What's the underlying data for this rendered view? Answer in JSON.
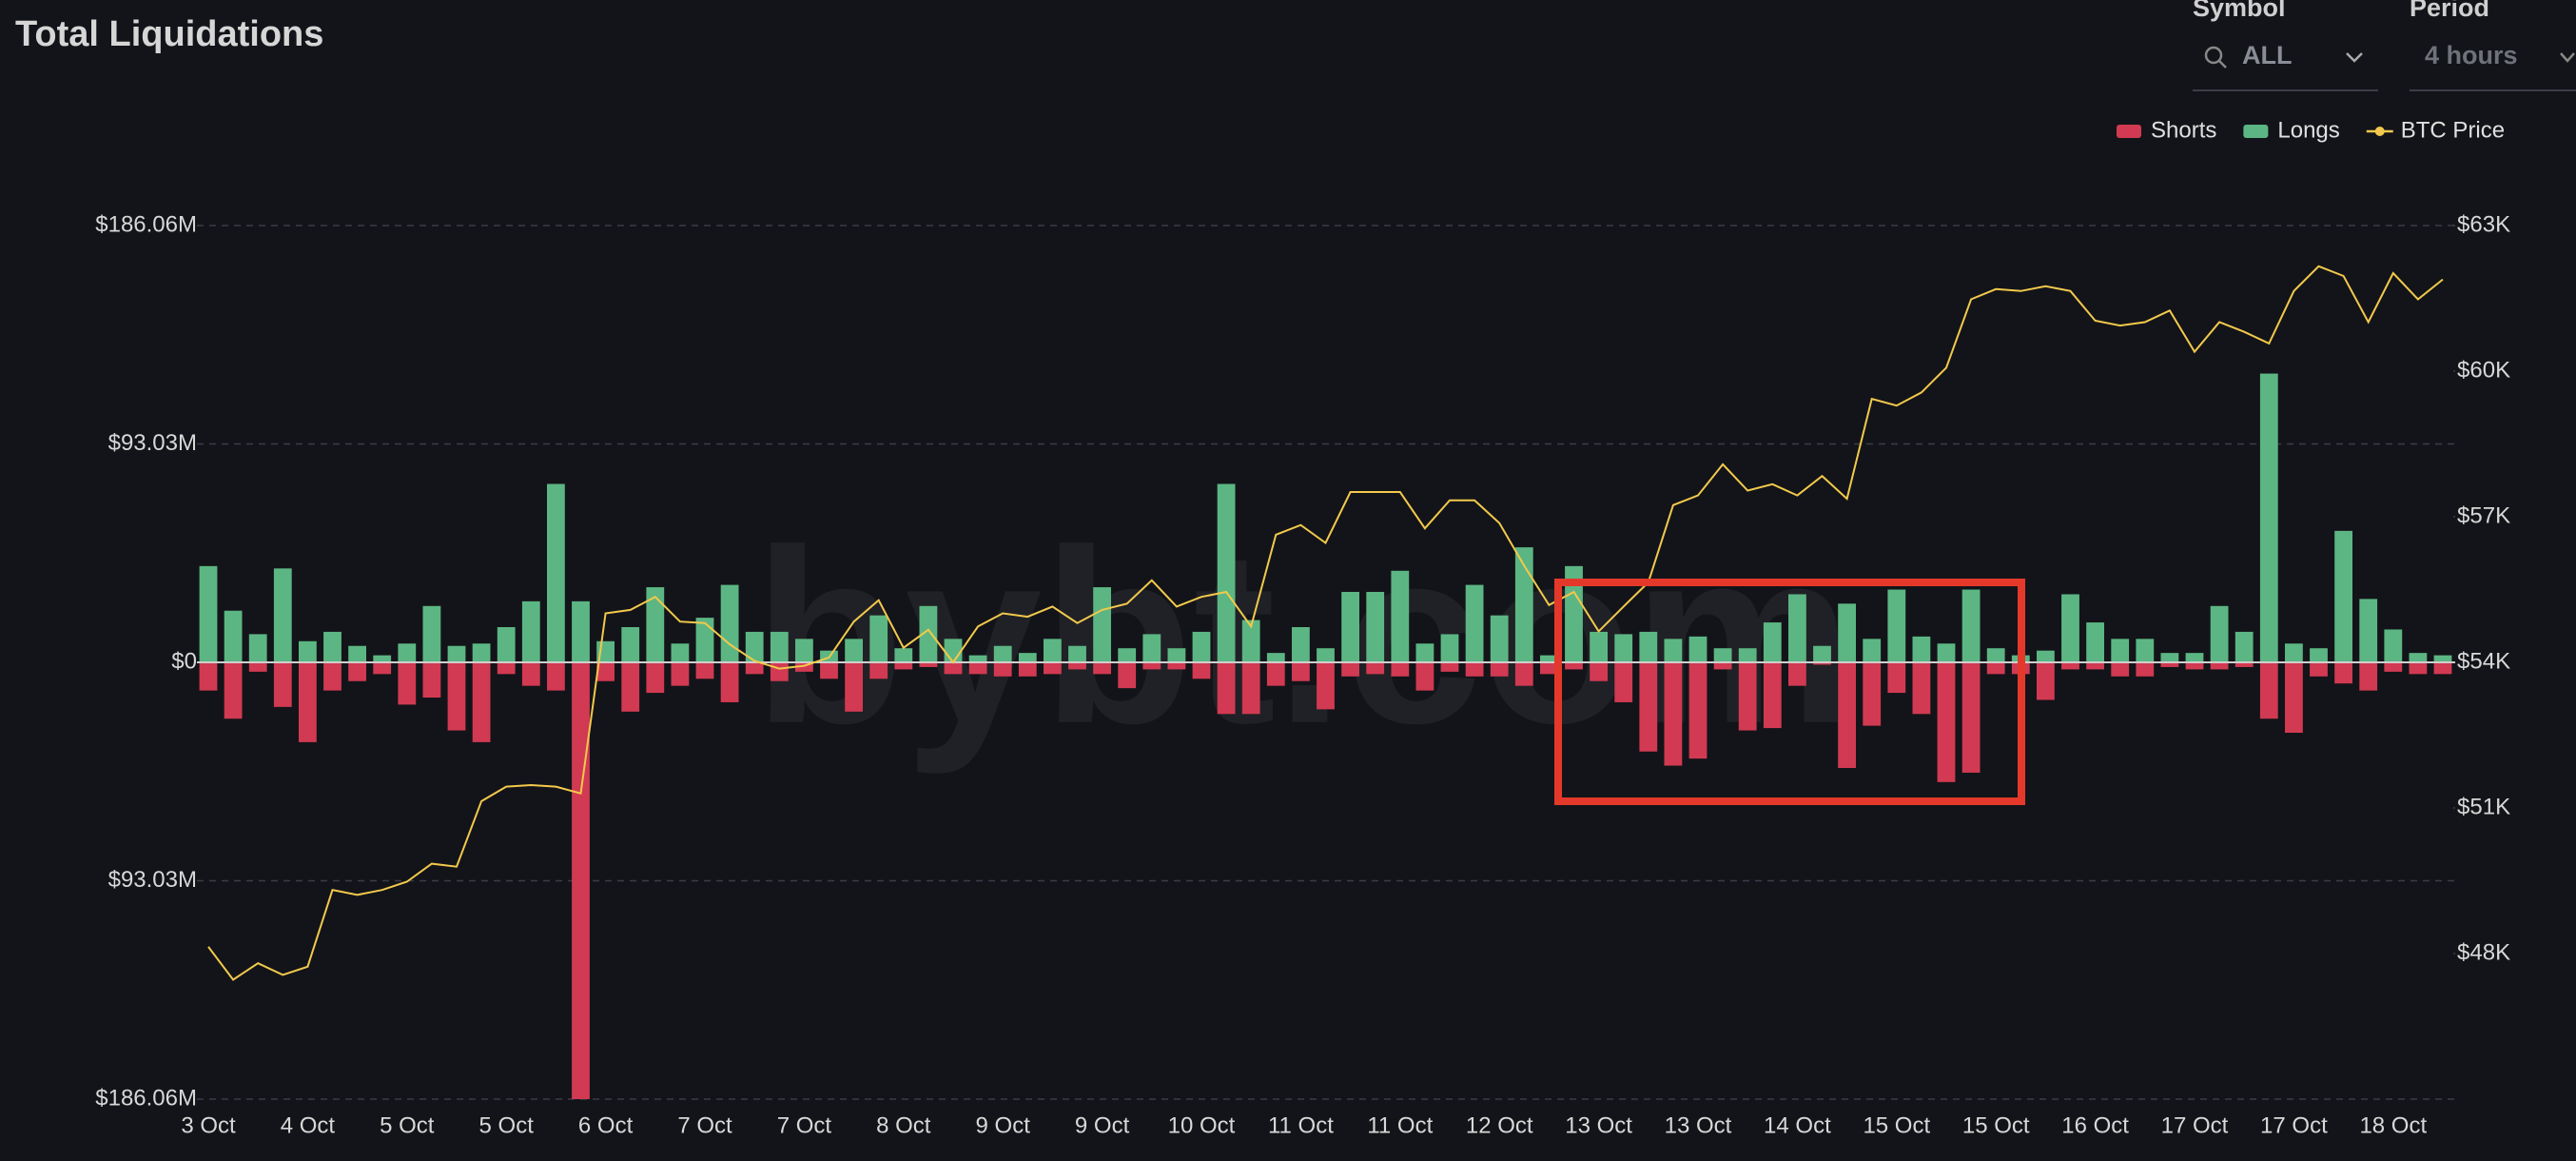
{
  "controls": {
    "symbol": {
      "label": "Symbol",
      "value": "ALL"
    },
    "period": {
      "label": "Period",
      "value": "4 hours"
    }
  },
  "chart_data": {
    "type": "bar",
    "title": "Total Liquidations",
    "watermark": "bybt.com",
    "grid": true,
    "legend": "top-right",
    "categories": [
      "3 Oct",
      null,
      null,
      null,
      "4 Oct",
      null,
      null,
      null,
      "5 Oct",
      null,
      null,
      null,
      "5 Oct",
      null,
      null,
      null,
      "6 Oct",
      null,
      null,
      null,
      "7 Oct",
      null,
      null,
      null,
      "7 Oct",
      null,
      null,
      null,
      "8 Oct",
      null,
      null,
      null,
      "9 Oct",
      null,
      null,
      null,
      "9 Oct",
      null,
      null,
      null,
      "10 Oct",
      null,
      null,
      null,
      "11 Oct",
      null,
      null,
      null,
      "11 Oct",
      null,
      null,
      null,
      "12 Oct",
      null,
      null,
      null,
      "13 Oct",
      null,
      null,
      null,
      "13 Oct",
      null,
      null,
      null,
      "14 Oct",
      null,
      null,
      null,
      "15 Oct",
      null,
      null,
      null,
      "15 Oct",
      null,
      null,
      null,
      "16 Oct",
      null,
      null,
      null,
      "17 Oct",
      null,
      null,
      null,
      "17 Oct",
      null,
      null,
      null,
      "18 Oct",
      null,
      null
    ],
    "series": [
      {
        "name": "Shorts",
        "color": "#d13a52",
        "values": [
          -12,
          -24,
          -4,
          -19,
          -34,
          -12,
          -8,
          -5,
          -18,
          -15,
          -29,
          -34,
          -5,
          -10,
          -12,
          -186.06,
          -8,
          -21,
          -13,
          -10,
          -7,
          -17,
          -5,
          -8,
          -4,
          -7,
          -21,
          -7,
          -3,
          -2,
          -5,
          -5,
          -6,
          -6,
          -5,
          -3,
          -5,
          -11,
          -3,
          -3,
          -7,
          -22,
          -22,
          -10,
          -8,
          -20,
          -6,
          -5,
          -6,
          -12,
          -4,
          -6,
          -6,
          -10,
          -5,
          -3,
          -8,
          -17,
          -38,
          -44,
          -41,
          -3,
          -29,
          -28,
          -10,
          -1,
          -45,
          -27,
          -13,
          -22,
          -51,
          -47,
          -5,
          -5,
          -16,
          -3,
          -3,
          -6,
          -6,
          -2,
          -3,
          -3,
          -2,
          -24,
          -30,
          -6,
          -9,
          -12,
          -4,
          -5,
          -5
        ]
      },
      {
        "name": "Longs",
        "color": "#5cb683",
        "values": [
          41,
          22,
          12,
          40,
          9,
          13,
          7,
          3,
          8,
          24,
          7,
          8,
          15,
          26,
          76,
          26,
          9,
          15,
          32,
          8,
          19,
          33,
          13,
          13,
          10,
          5,
          10,
          20,
          6,
          24,
          10,
          3,
          7,
          4,
          10,
          7,
          32,
          6,
          12,
          6,
          13,
          76,
          18,
          4,
          15,
          6,
          30,
          30,
          39,
          8,
          12,
          33,
          20,
          49,
          3,
          41,
          13,
          12,
          13,
          10,
          11,
          6,
          6,
          17,
          29,
          7,
          25,
          10,
          31,
          11,
          8,
          31,
          6,
          3,
          5,
          29,
          17,
          10,
          10,
          4,
          4,
          24,
          13,
          123,
          8,
          6,
          56,
          27,
          14,
          4,
          3
        ]
      },
      {
        "name": "BTC Price",
        "color": "#f2c94c",
        "axis": "y2",
        "type": "line",
        "values": [
          48140,
          47460,
          47800,
          47560,
          47730,
          49310,
          49210,
          49310,
          49480,
          49850,
          49790,
          51140,
          51440,
          51470,
          51440,
          51300,
          55010,
          55080,
          55350,
          54840,
          54810,
          54370,
          54030,
          53870,
          53930,
          54100,
          54840,
          55280,
          54300,
          54670,
          54000,
          54740,
          55010,
          54940,
          55150,
          54810,
          55080,
          55210,
          55690,
          55150,
          55350,
          55450,
          54740,
          56630,
          56830,
          56460,
          57510,
          57510,
          57510,
          56760,
          57340,
          57340,
          56870,
          55990,
          55180,
          55450,
          54640,
          55150,
          55650,
          57240,
          57440,
          58080,
          57540,
          57670,
          57440,
          57840,
          57370,
          59430,
          59290,
          59560,
          60070,
          61480,
          61690,
          61650,
          61750,
          61650,
          61040,
          60940,
          61010,
          61250,
          60400,
          61010,
          60810,
          60570,
          61650,
          62160,
          61960,
          61010,
          62020,
          61480,
          61890
        ]
      }
    ],
    "ylim": [
      -186.06,
      186.06
    ],
    "yticks": [
      {
        "value": 186.06,
        "label": "$186.06M"
      },
      {
        "value": 93.03,
        "label": "$93.03M"
      },
      {
        "value": 0,
        "label": "$0"
      },
      {
        "value": -93.03,
        "label": "$93.03M"
      },
      {
        "value": -186.06,
        "label": "$186.06M"
      }
    ],
    "y2lim": [
      45000,
      63000
    ],
    "y2ticks": [
      {
        "value": 63000,
        "label": "$63K"
      },
      {
        "value": 60000,
        "label": "$60K"
      },
      {
        "value": 57000,
        "label": "$57K"
      },
      {
        "value": 54000,
        "label": "$54K"
      },
      {
        "value": 51000,
        "label": "$51K"
      },
      {
        "value": 48000,
        "label": "$48K"
      }
    ]
  }
}
